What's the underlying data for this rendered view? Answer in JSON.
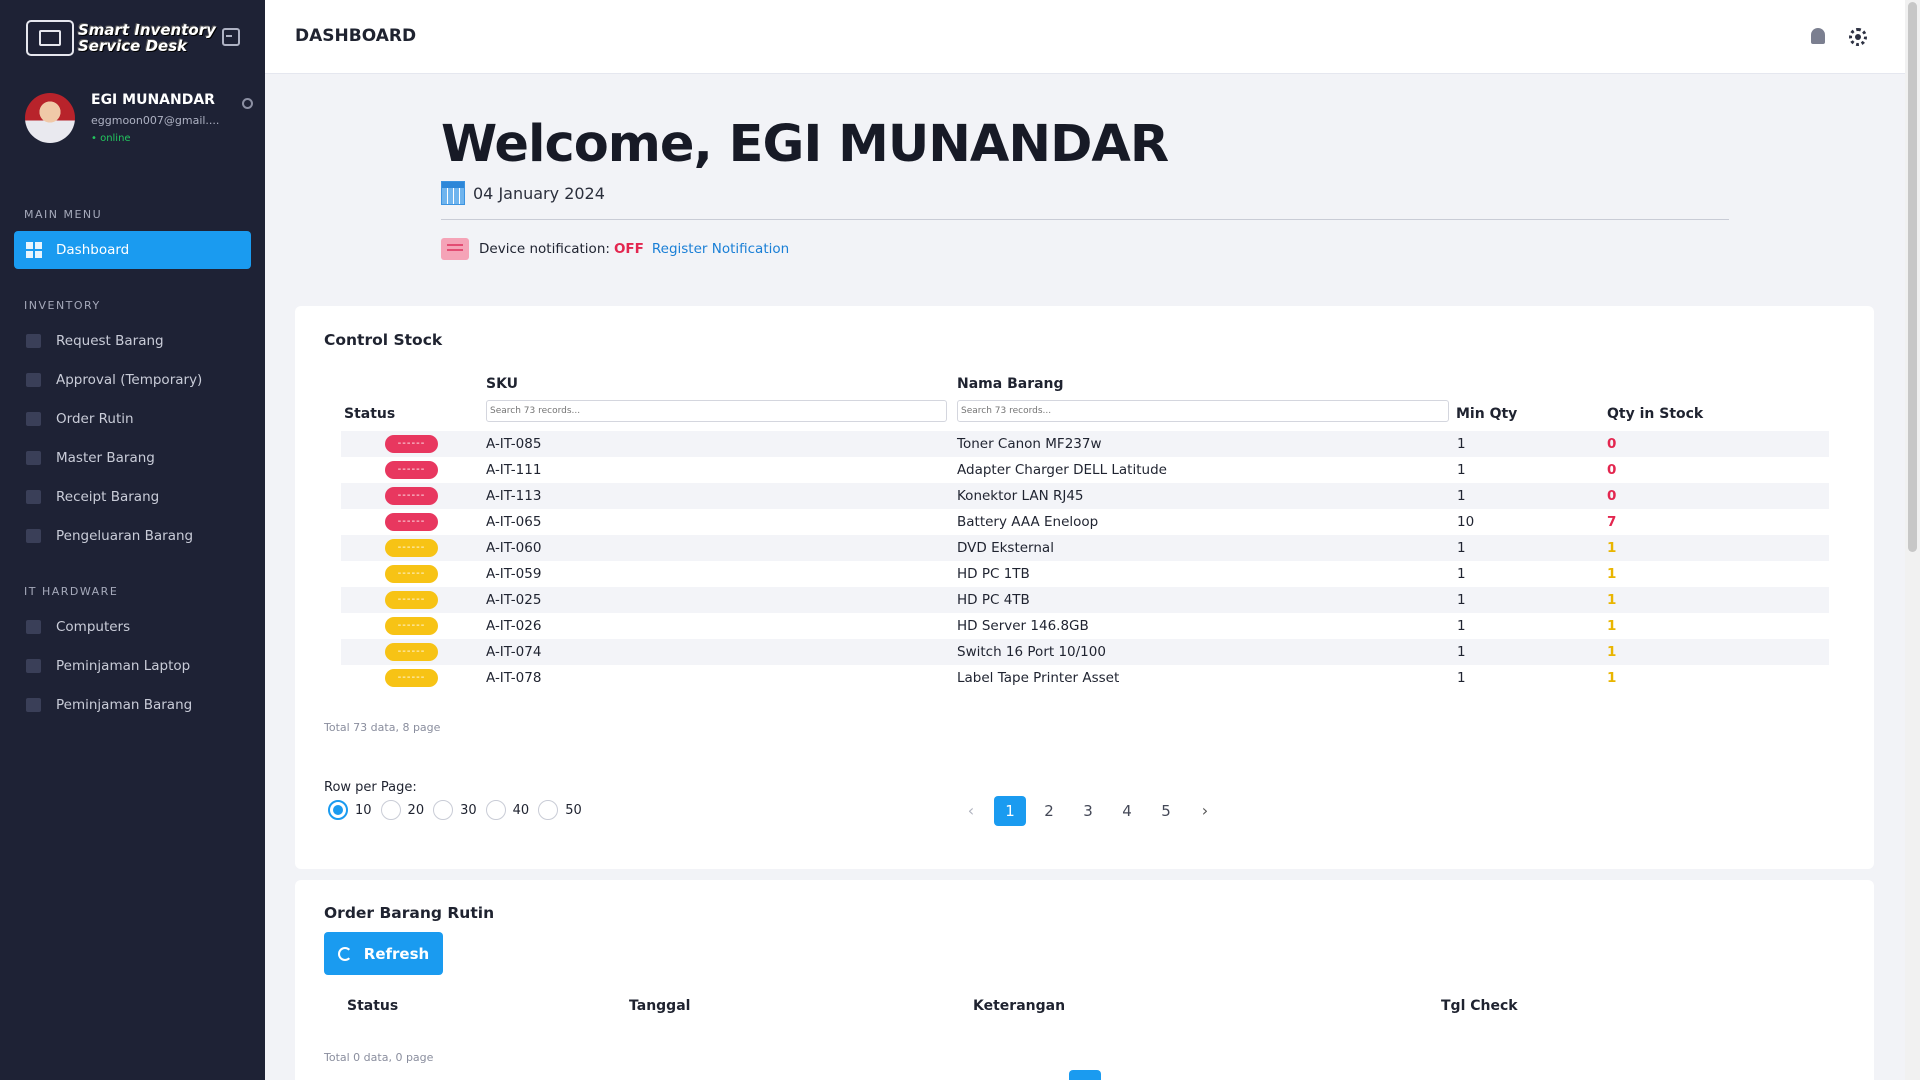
{
  "app": {
    "logo_line1": "Smart Inventory",
    "logo_line2": "Service Desk"
  },
  "user": {
    "name": "EGI MUNANDAR",
    "email": "eggmoon007@gmail....",
    "status": "• online"
  },
  "sidebar": {
    "sections": [
      {
        "header": "MAIN MENU",
        "items": [
          {
            "label": "Dashboard",
            "icon": "dashboard-icon",
            "active": true
          }
        ]
      },
      {
        "header": "INVENTORY",
        "items": [
          {
            "label": "Request Barang",
            "icon": "cart-icon"
          },
          {
            "label": "Approval (Temporary)",
            "icon": "box-icon"
          },
          {
            "label": "Order Rutin",
            "icon": "calendar-icon"
          },
          {
            "label": "Master Barang",
            "icon": "grid-icon"
          },
          {
            "label": "Receipt Barang",
            "icon": "receipt-icon"
          },
          {
            "label": "Pengeluaran Barang",
            "icon": "truck-icon"
          }
        ]
      },
      {
        "header": "IT HARDWARE",
        "items": [
          {
            "label": "Computers",
            "icon": "computer-icon"
          },
          {
            "label": "Peminjaman Laptop",
            "icon": "laptop-icon"
          },
          {
            "label": "Peminjaman Barang",
            "icon": "clipboard-icon"
          }
        ]
      }
    ]
  },
  "header": {
    "title": "DASHBOARD"
  },
  "welcome": {
    "greeting": "Welcome, EGI MUNANDAR",
    "date": "04 January 2024",
    "notif_label": "Device notification:",
    "notif_state": "OFF",
    "notif_link": "Register Notification"
  },
  "control_stock": {
    "title": "Control Stock",
    "columns": {
      "status": "Status",
      "sku": "SKU",
      "nama": "Nama Barang",
      "min_qty": "Min Qty",
      "qty_stock": "Qty in Stock"
    },
    "search_placeholder": "Search 73 records...",
    "rows": [
      {
        "badge": "------",
        "level": "red",
        "sku": "A-IT-085",
        "nama": "Toner Canon MF237w",
        "min": "1",
        "qty": "0"
      },
      {
        "badge": "------",
        "level": "red",
        "sku": "A-IT-111",
        "nama": "Adapter Charger DELL Latitude",
        "min": "1",
        "qty": "0"
      },
      {
        "badge": "------",
        "level": "red",
        "sku": "A-IT-113",
        "nama": "Konektor LAN RJ45",
        "min": "1",
        "qty": "0"
      },
      {
        "badge": "------",
        "level": "red",
        "sku": "A-IT-065",
        "nama": "Battery AAA Eneloop",
        "min": "10",
        "qty": "7"
      },
      {
        "badge": "------",
        "level": "yellow",
        "sku": "A-IT-060",
        "nama": "DVD Eksternal",
        "min": "1",
        "qty": "1"
      },
      {
        "badge": "------",
        "level": "yellow",
        "sku": "A-IT-059",
        "nama": "HD PC 1TB",
        "min": "1",
        "qty": "1"
      },
      {
        "badge": "------",
        "level": "yellow",
        "sku": "A-IT-025",
        "nama": "HD PC 4TB",
        "min": "1",
        "qty": "1"
      },
      {
        "badge": "------",
        "level": "yellow",
        "sku": "A-IT-026",
        "nama": "HD Server 146.8GB",
        "min": "1",
        "qty": "1"
      },
      {
        "badge": "------",
        "level": "yellow",
        "sku": "A-IT-074",
        "nama": "Switch 16 Port 10/100",
        "min": "1",
        "qty": "1"
      },
      {
        "badge": "------",
        "level": "yellow",
        "sku": "A-IT-078",
        "nama": "Label Tape Printer Asset",
        "min": "1",
        "qty": "1"
      }
    ],
    "total": "Total 73 data, 8 page",
    "pages": [
      "1",
      "2",
      "3",
      "4",
      "5"
    ],
    "current_page": "1",
    "prev_icon": "chevron-left-icon",
    "next_icon": "chevron-right-icon",
    "rows_per_page_label": "Row per Page:",
    "rows_per_page_options": [
      "10",
      "20",
      "30",
      "40",
      "50"
    ],
    "rows_per_page_selected": "10"
  },
  "order_rutin": {
    "title": "Order Barang Rutin",
    "refresh_label": "Refresh",
    "columns": {
      "status": "Status",
      "tanggal": "Tanggal",
      "keterangan": "Keterangan",
      "tgl_check": "Tgl Check"
    },
    "total": "Total 0 data, 0 page"
  },
  "colors": {
    "accent": "#1a9bf0",
    "sidebar_bg": "#1e2235",
    "danger": "#e8375f",
    "warning": "#f7c315"
  }
}
